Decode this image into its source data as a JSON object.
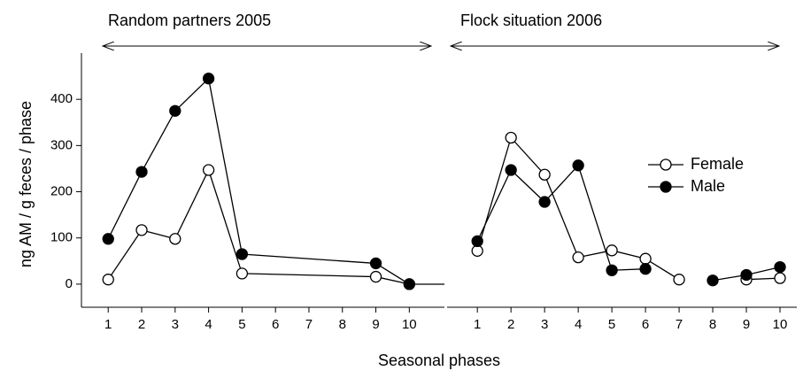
{
  "chart_data": {
    "type": "line",
    "ylabel": "ng AM / g feces / phase",
    "xlabel": "Seasonal phases",
    "ylim": [
      -50,
      500
    ],
    "yticks": [
      0,
      100,
      200,
      300,
      400
    ],
    "series": [
      {
        "name": "Female",
        "color": "#ffffff"
      },
      {
        "name": "Male",
        "color": "#000000"
      }
    ],
    "panels": [
      {
        "title": "Random partners 2005",
        "xlim": [
          0.2,
          11.05
        ],
        "xticks": [
          1,
          2,
          3,
          4,
          5,
          6,
          7,
          8,
          9,
          10
        ],
        "x": [
          1,
          2,
          3,
          4,
          5,
          9,
          10
        ],
        "values": [
          [
            10,
            117,
            98,
            247,
            23,
            16,
            0
          ],
          [
            98,
            243,
            375,
            445,
            65,
            45,
            0
          ]
        ]
      },
      {
        "title": "Flock situation 2006",
        "xlim": [
          0.1,
          10.5
        ],
        "xticks": [
          1,
          2,
          3,
          4,
          5,
          6,
          7,
          8,
          9,
          10
        ],
        "x": [
          1,
          2,
          3,
          4,
          5,
          6,
          7,
          8,
          9,
          10
        ],
        "values": [
          [
            72,
            317,
            237,
            58,
            73,
            55,
            10,
            null,
            10,
            13
          ],
          [
            93,
            247,
            178,
            257,
            30,
            33,
            null,
            8,
            20,
            37
          ]
        ]
      }
    ]
  }
}
